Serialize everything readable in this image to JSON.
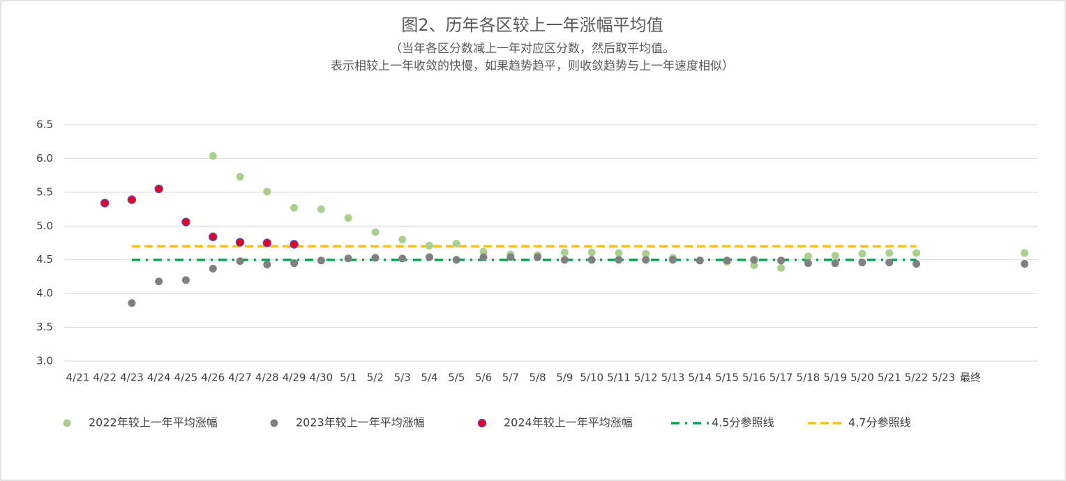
{
  "chart_data": {
    "type": "scatter",
    "title": "图2、历年各区较上一年涨幅平均值",
    "subtitle": [
      "（当年各区分数减上一年对应区分数，然后取平均值。",
      "表示相较上一年收敛的快慢，如果趋势趋平，则收敛趋势与上一年速度相似）"
    ],
    "categories": [
      "4/21",
      "4/22",
      "4/23",
      "4/24",
      "4/25",
      "4/26",
      "4/27",
      "4/28",
      "4/29",
      "4/30",
      "5/1",
      "5/2",
      "5/3",
      "5/4",
      "5/5",
      "5/6",
      "5/7",
      "5/8",
      "5/9",
      "5/10",
      "5/11",
      "5/12",
      "5/13",
      "5/14",
      "5/15",
      "5/16",
      "5/17",
      "5/18",
      "5/19",
      "5/20",
      "5/21",
      "5/22",
      "5/23",
      "最终",
      null,
      null
    ],
    "ylim": [
      3,
      6.5
    ],
    "yticks": [
      {
        "value": 3,
        "label": "3.0"
      },
      3.5,
      {
        "value": 4,
        "label": "4.0"
      },
      4.5,
      {
        "value": 5,
        "label": "5.0"
      },
      5.5,
      {
        "value": 6,
        "label": "6.0"
      },
      6.5
    ],
    "grid": true,
    "legend": "bottom",
    "series": [
      {
        "name": "2022年较上一年平均涨幅",
        "kind": "scatter",
        "color": "#a9d18e",
        "values": [
          null,
          null,
          null,
          null,
          null,
          6.04,
          5.73,
          5.51,
          5.27,
          5.25,
          5.12,
          4.91,
          4.8,
          4.71,
          4.74,
          4.62,
          4.58,
          4.57,
          4.61,
          4.61,
          4.6,
          4.59,
          4.53,
          4.49,
          4.47,
          4.42,
          4.38,
          4.55,
          4.56,
          4.59,
          4.6,
          4.6,
          null,
          null,
          null,
          4.6
        ]
      },
      {
        "name": "2023年较上一年平均涨幅",
        "kind": "scatter",
        "color": "#808080",
        "values": [
          null,
          null,
          3.86,
          4.18,
          4.2,
          4.37,
          4.48,
          4.43,
          4.45,
          4.49,
          4.52,
          4.53,
          4.52,
          4.54,
          4.5,
          4.54,
          4.54,
          4.54,
          4.5,
          4.5,
          4.5,
          4.5,
          4.5,
          4.49,
          4.49,
          4.5,
          4.49,
          4.45,
          4.45,
          4.46,
          4.46,
          4.44,
          null,
          null,
          null,
          4.44
        ]
      },
      {
        "name": "2024年较上一年平均涨幅",
        "kind": "scatter",
        "color": "#e8001c",
        "edgecolor": "#5a4ec4",
        "values": [
          null,
          5.34,
          5.39,
          5.55,
          5.06,
          4.84,
          4.76,
          4.75,
          4.73,
          null,
          null,
          null,
          null,
          null,
          null,
          null,
          null,
          null,
          null,
          null,
          null,
          null,
          null,
          null,
          null,
          null,
          null,
          null,
          null,
          null,
          null,
          null,
          null,
          null,
          null,
          null
        ]
      },
      {
        "name": "4.5分参照线",
        "kind": "line",
        "dash": "dash-dot",
        "color": "#00a651",
        "values": [
          null,
          null,
          4.5,
          4.5,
          4.5,
          4.5,
          4.5,
          4.5,
          4.5,
          4.5,
          4.5,
          4.5,
          4.5,
          4.5,
          4.5,
          4.5,
          4.5,
          4.5,
          4.5,
          4.5,
          4.5,
          4.5,
          4.5,
          4.5,
          4.5,
          4.5,
          4.5,
          4.5,
          4.5,
          4.5,
          4.5,
          4.5,
          null,
          null,
          null,
          null
        ]
      },
      {
        "name": "4.7分参照线",
        "kind": "line",
        "dash": "dashed",
        "color": "#ffc000",
        "values": [
          null,
          null,
          4.7,
          4.7,
          4.7,
          4.7,
          4.7,
          4.7,
          4.7,
          4.7,
          4.7,
          4.7,
          4.7,
          4.7,
          4.7,
          4.7,
          4.7,
          4.7,
          4.7,
          4.7,
          4.7,
          4.7,
          4.7,
          4.7,
          4.7,
          4.7,
          4.7,
          4.7,
          4.7,
          4.7,
          4.7,
          4.7,
          null,
          null,
          null,
          null
        ]
      }
    ]
  }
}
